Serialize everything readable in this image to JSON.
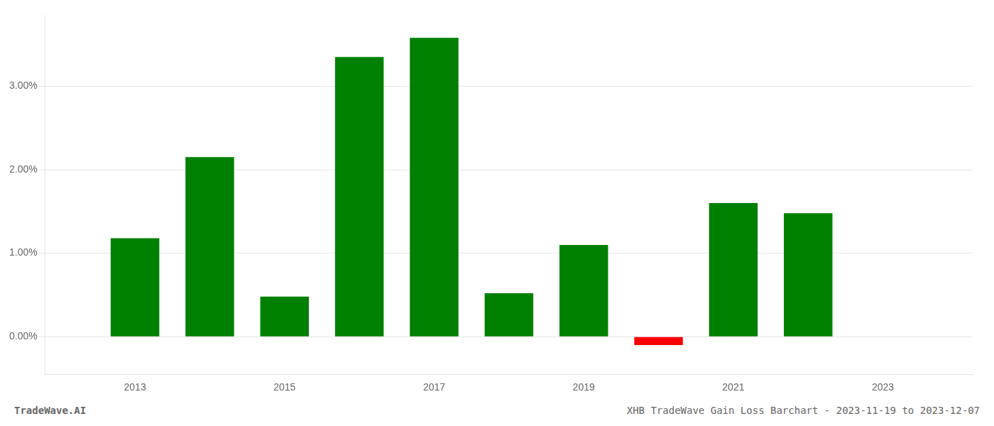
{
  "chart_data": {
    "type": "bar",
    "x": [
      2013,
      2014,
      2015,
      2016,
      2017,
      2018,
      2019,
      2020,
      2021,
      2022
    ],
    "values": [
      0.0118,
      0.0215,
      0.0048,
      0.0335,
      0.0358,
      0.0052,
      0.011,
      -0.001,
      0.016,
      0.0148
    ],
    "colors": [
      "#008000",
      "#008000",
      "#008000",
      "#008000",
      "#008000",
      "#008000",
      "#008000",
      "#ff0000",
      "#008000",
      "#008000"
    ],
    "xlim": [
      2011.8,
      2024.2
    ],
    "xticks": [
      2013,
      2015,
      2017,
      2019,
      2021,
      2023
    ],
    "ylim": [
      -0.0045,
      0.0385
    ],
    "yticks": [
      {
        "value": 0,
        "label": "0.00%"
      },
      {
        "value": 0.01,
        "label": "1.00%"
      },
      {
        "value": 0.02,
        "label": "2.00%"
      },
      {
        "value": 0.03,
        "label": "3.00%"
      }
    ],
    "grid": true,
    "annotations": [
      "TradeWave.AI",
      "XHB TradeWave Gain Loss Barchart - 2023-11-19 to 2023-12-07"
    ]
  }
}
